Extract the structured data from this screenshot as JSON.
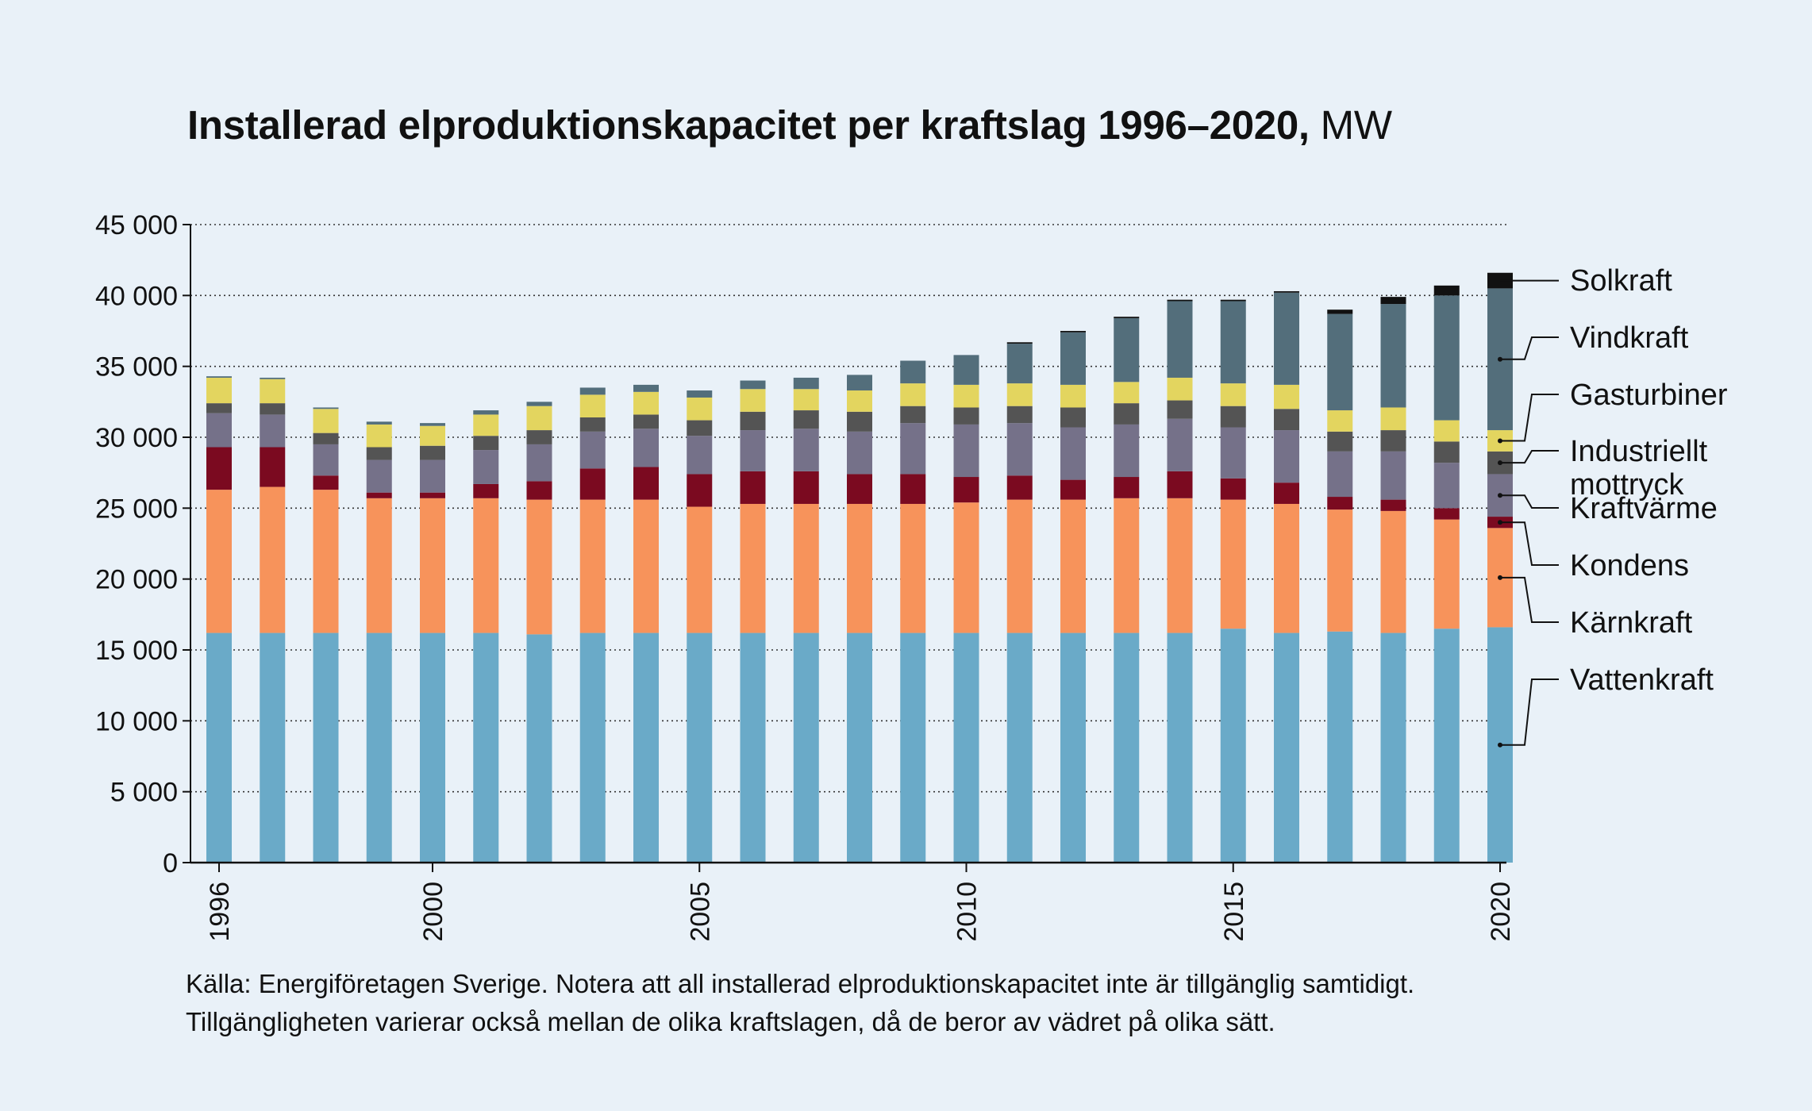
{
  "title": "Installerad elproduktionskapacitet per kraftslag 1996–2020,",
  "unit": "MW",
  "source_lines": [
    "Källa: Energiföretagen Sverige. Notera att all installerad elproduktionskapacitet inte är tillgänglig samtidigt.",
    "Tillgängligheten varierar också mellan de olika kraftslagen, då de beror av vädret på olika sätt."
  ],
  "chart_data": {
    "type": "bar",
    "stacked": true,
    "title": "Installerad elproduktionskapacitet per kraftslag 1996–2020, MW",
    "categories": [
      "1996",
      "1997",
      "1998",
      "1999",
      "2000",
      "2001",
      "2002",
      "2003",
      "2004",
      "2005",
      "2006",
      "2007",
      "2008",
      "2009",
      "2010",
      "2011",
      "2012",
      "2013",
      "2014",
      "2015",
      "2016",
      "2017",
      "2018",
      "2019",
      "2020"
    ],
    "x_tick_labels": [
      "1996",
      "2000",
      "2005",
      "2010",
      "2015",
      "2020"
    ],
    "ylim": [
      0,
      45000
    ],
    "y_tick_labels": [
      "0",
      "5 000",
      "10 000",
      "15 000",
      "20 000",
      "25 000",
      "30 000",
      "35 000",
      "40 000",
      "45 000"
    ],
    "y_tick_values": [
      0,
      5000,
      10000,
      15000,
      20000,
      25000,
      30000,
      35000,
      40000,
      45000
    ],
    "grid": "horizontal dotted",
    "legend_position": "right",
    "series": [
      {
        "name": "Vattenkraft",
        "color": "#6aaac8",
        "values": [
          16200,
          16200,
          16200,
          16200,
          16200,
          16200,
          16100,
          16200,
          16200,
          16200,
          16200,
          16200,
          16200,
          16200,
          16200,
          16200,
          16200,
          16200,
          16200,
          16500,
          16200,
          16300,
          16200,
          16500,
          16600
        ]
      },
      {
        "name": "Kärnkraft",
        "color": "#f7935b",
        "values": [
          10100,
          10300,
          10100,
          9500,
          9500,
          9500,
          9500,
          9400,
          9400,
          8900,
          9100,
          9100,
          9100,
          9100,
          9200,
          9400,
          9400,
          9500,
          9500,
          9100,
          9100,
          8600,
          8600,
          7700,
          7000
        ]
      },
      {
        "name": "Kondens",
        "color": "#7b0a20",
        "values": [
          3000,
          2800,
          1000,
          400,
          400,
          1000,
          1300,
          2200,
          2300,
          2300,
          2300,
          2300,
          2100,
          2100,
          1800,
          1700,
          1400,
          1500,
          1900,
          1500,
          1500,
          900,
          800,
          800,
          800
        ]
      },
      {
        "name": "Kraftvärme",
        "color": "#757189",
        "values": [
          2400,
          2300,
          2200,
          2300,
          2300,
          2400,
          2600,
          2600,
          2700,
          2700,
          2900,
          3000,
          3000,
          3600,
          3700,
          3700,
          3700,
          3700,
          3700,
          3600,
          3700,
          3200,
          3400,
          3200,
          3000
        ]
      },
      {
        "name": "Industriellt mottryck",
        "color": "#545454",
        "values": [
          700,
          800,
          800,
          900,
          1000,
          1000,
          1000,
          1000,
          1000,
          1100,
          1300,
          1300,
          1400,
          1200,
          1200,
          1200,
          1400,
          1500,
          1300,
          1500,
          1500,
          1400,
          1500,
          1500,
          1600
        ]
      },
      {
        "name": "Gasturbiner",
        "color": "#e3d55f",
        "values": [
          1800,
          1700,
          1700,
          1600,
          1400,
          1500,
          1700,
          1600,
          1600,
          1600,
          1600,
          1500,
          1500,
          1600,
          1600,
          1600,
          1600,
          1500,
          1600,
          1600,
          1700,
          1500,
          1600,
          1500,
          1500
        ]
      },
      {
        "name": "Vindkraft",
        "color": "#536e7b",
        "values": [
          100,
          100,
          100,
          200,
          200,
          300,
          300,
          500,
          500,
          500,
          600,
          800,
          1100,
          1600,
          2100,
          2800,
          3700,
          4500,
          5400,
          5800,
          6500,
          6800,
          7300,
          8800,
          10000
        ]
      },
      {
        "name": "Solkraft",
        "color": "#111111",
        "values": [
          0,
          0,
          0,
          0,
          0,
          0,
          0,
          0,
          0,
          0,
          0,
          0,
          0,
          0,
          0,
          100,
          100,
          100,
          100,
          100,
          100,
          300,
          500,
          700,
          1100
        ]
      }
    ]
  }
}
